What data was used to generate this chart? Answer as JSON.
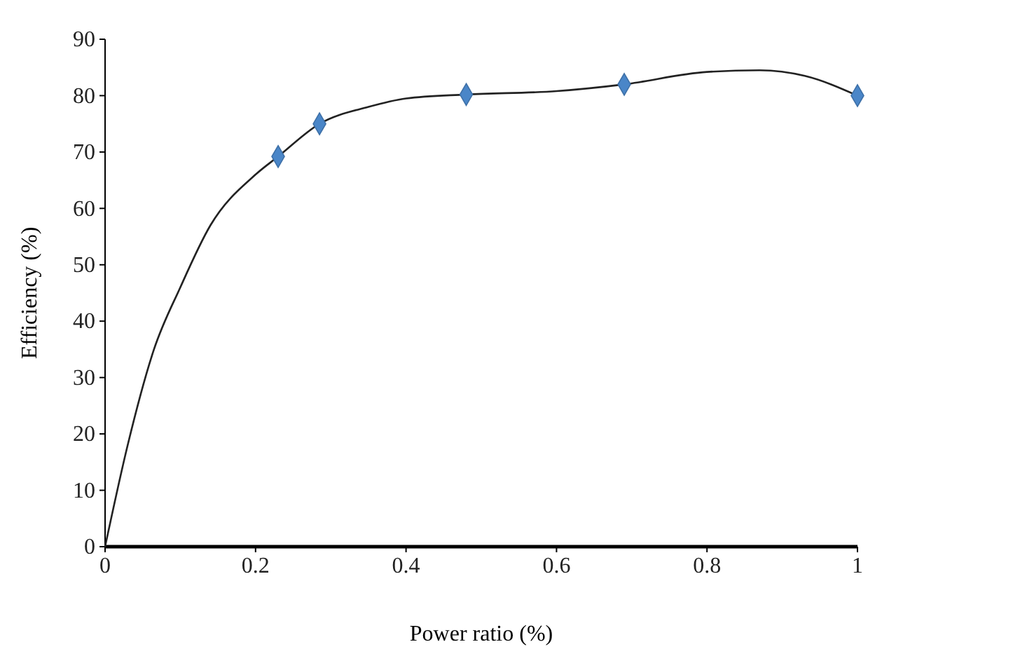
{
  "chart_data": {
    "type": "line",
    "xlabel": "Power ratio (%)",
    "ylabel": "Efficiency (%)",
    "xlim": [
      0,
      1
    ],
    "ylim": [
      0,
      90
    ],
    "xticks": [
      0,
      0.2,
      0.4,
      0.6,
      0.8,
      1
    ],
    "yticks": [
      0,
      10,
      20,
      30,
      40,
      50,
      60,
      70,
      80,
      90
    ],
    "grid": false,
    "series": [
      {
        "type": "line",
        "color": "#222222",
        "marker": "none",
        "line_style": "solid",
        "x": [
          0,
          0.03,
          0.065,
          0.1,
          0.14,
          0.2,
          0.23,
          0.285,
          0.35,
          0.4,
          0.48,
          0.6,
          0.69,
          0.8,
          0.87,
          0.93,
          1
        ],
        "values": [
          0,
          18,
          35,
          46,
          57,
          66,
          69.2,
          75,
          78,
          79.5,
          80.2,
          80.8,
          82,
          84.2,
          84.5,
          83.5,
          80
        ]
      },
      {
        "type": "scatter",
        "color": "#4a86c8",
        "marker": "diamond",
        "x": [
          0.23,
          0.285,
          0.48,
          0.69,
          1
        ],
        "values": [
          69.2,
          75,
          80.2,
          82,
          80
        ]
      }
    ]
  }
}
